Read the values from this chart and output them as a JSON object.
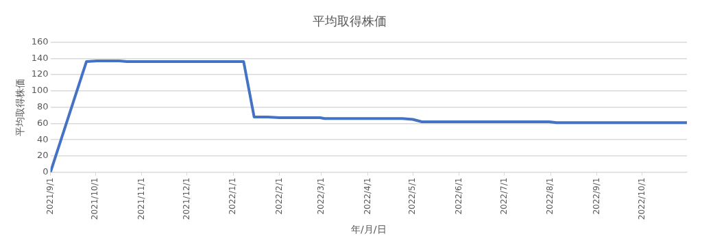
{
  "chart_data": {
    "type": "line",
    "title": "平均取得株価",
    "xlabel": "年/月/日",
    "ylabel": "平均取得株価",
    "x": [
      "2021-09-01",
      "2021-09-25",
      "2021-10-02",
      "2021-10-17",
      "2021-10-22",
      "2022-01-08",
      "2022-01-15",
      "2022-01-24",
      "2022-02-01",
      "2022-02-28",
      "2022-03-03",
      "2022-04-24",
      "2022-05-01",
      "2022-05-07",
      "2022-07-31",
      "2022-08-05",
      "2022-10-31"
    ],
    "series": [
      {
        "color": "#4472c4",
        "values": [
          0,
          136,
          137,
          137,
          136,
          136,
          68,
          68,
          67,
          67,
          66,
          66,
          65,
          62,
          62,
          61,
          61
        ]
      }
    ],
    "xlim": [
      "2021-09-01",
      "2022-10-31"
    ],
    "xticks": [
      {
        "value": "2021-09-01",
        "label": "2021/9/1"
      },
      {
        "value": "2021-10-01",
        "label": "2021/10/1"
      },
      {
        "value": "2021-11-01",
        "label": "2021/11/1"
      },
      {
        "value": "2021-12-01",
        "label": "2021/12/1"
      },
      {
        "value": "2022-01-01",
        "label": "2022/1/1"
      },
      {
        "value": "2022-02-01",
        "label": "2022/2/1"
      },
      {
        "value": "2022-03-01",
        "label": "2022/3/1"
      },
      {
        "value": "2022-04-01",
        "label": "2022/4/1"
      },
      {
        "value": "2022-05-01",
        "label": "2022/5/1"
      },
      {
        "value": "2022-06-01",
        "label": "2022/6/1"
      },
      {
        "value": "2022-07-01",
        "label": "2022/7/1"
      },
      {
        "value": "2022-08-01",
        "label": "2022/8/1"
      },
      {
        "value": "2022-09-01",
        "label": "2022/9/1"
      },
      {
        "value": "2022-10-01",
        "label": "2022/10/1"
      }
    ],
    "ylim": [
      0,
      160
    ],
    "yticks": [
      0,
      20,
      40,
      60,
      80,
      100,
      120,
      140,
      160
    ],
    "grid": "y",
    "legend": false,
    "marker": "none",
    "line_style": "solid"
  }
}
